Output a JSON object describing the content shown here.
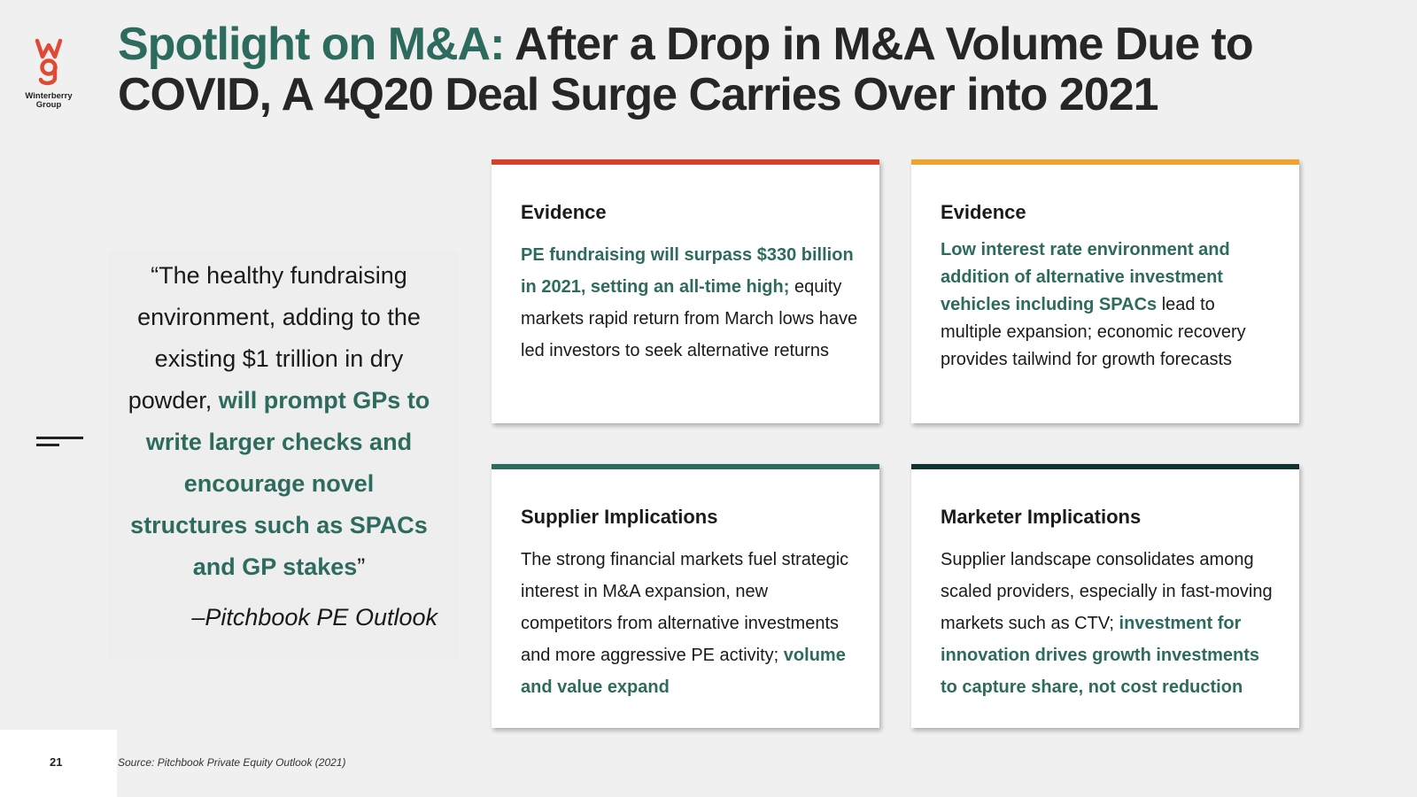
{
  "logo": {
    "brand_text": "Winterberry Group",
    "icon": "wg-logo-icon"
  },
  "title": {
    "accent": "Spotlight on M&A:",
    "rest": " After a Drop in M&A Volume Due to COVID, A 4Q20 Deal Surge Carries Over into 2021"
  },
  "quote": {
    "text_normal": "“The healthy fundraising environment, adding to the existing $1 trillion in dry powder, ",
    "text_highlight": "will prompt GPs to write larger checks and encourage novel structures such as SPACs and GP stakes",
    "close_mark": "”",
    "attribution": "–Pitchbook PE Outlook"
  },
  "cards": [
    {
      "heading": "Evidence",
      "bar_color": "#d9402b",
      "highlight": "PE fundraising will surpass $330 billion in 2021, setting an all-time high;",
      "text": " equity markets rapid return from March lows have led investors to seek alternative returns"
    },
    {
      "heading": "Evidence",
      "bar_color": "#f0a32e",
      "highlight": "Low interest rate environment and addition of alternative investment vehicles including SPACs",
      "text": " lead to multiple expansion; economic recovery provides tailwind for growth forecasts"
    },
    {
      "heading": "Supplier Implications",
      "bar_color": "#2d6b5e",
      "text": "The strong financial markets fuel strategic interest in M&A expansion, new competitors from alternative investments and more aggressive PE activity; ",
      "highlight": "volume and value expand"
    },
    {
      "heading": "Marketer Implications",
      "bar_color": "#0f3331",
      "text": "Supplier landscape consolidates among scaled providers, especially in fast-moving markets such as CTV; ",
      "highlight": "investment for innovation drives growth investments to capture share, not cost reduction"
    }
  ],
  "footer": {
    "page_number": "21",
    "source": "Source: Pitchbook Private Equity Outlook (2021)"
  }
}
